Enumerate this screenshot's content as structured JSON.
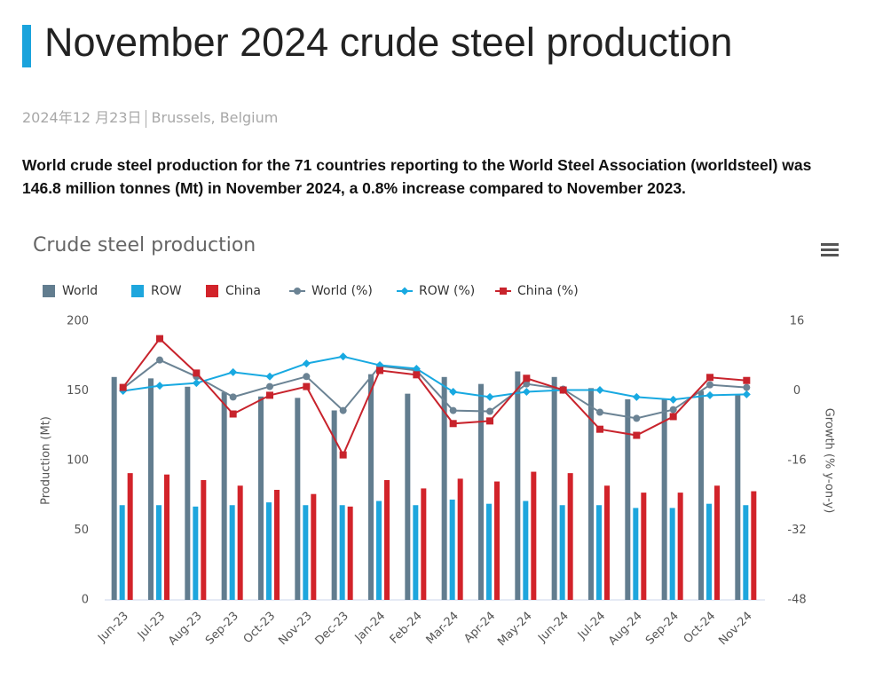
{
  "header": {
    "title": "November 2024 crude steel production",
    "date": "2024年12 月23日",
    "location": "Brussels, Belgium"
  },
  "summary": {
    "lines": [
      "World crude steel production for the 71 countries reporting to the World Steel Association (worldsteel) was",
      "146.8 million tonnes (Mt) in November 2024, a 0.8% increase compared to November 2023."
    ]
  },
  "chart_data": {
    "type": "bar",
    "title": "Crude steel production",
    "y_label": "Production (Mt)",
    "y2_label": "Growth (% y-on-y)",
    "categories": [
      "Jun-23",
      "Jul-23",
      "Aug-23",
      "Sep-23",
      "Oct-23",
      "Nov-23",
      "Dec-23",
      "Jan-24",
      "Feb-24",
      "Mar-24",
      "Apr-24",
      "May-24",
      "Jun-24",
      "Jul-24",
      "Aug-24",
      "Sep-24",
      "Oct-24",
      "Nov-24"
    ],
    "ylim": [
      0,
      200
    ],
    "yticks": [
      0,
      50,
      100,
      150,
      200
    ],
    "y2lim": [
      -48,
      16
    ],
    "y2ticks": [
      -48,
      -32,
      -16,
      0,
      16
    ],
    "series": [
      {
        "name": "World",
        "type": "bar",
        "color": "#627d8f",
        "values": [
          160,
          159,
          153,
          149,
          146,
          145,
          136,
          162,
          148,
          160,
          155,
          164,
          160,
          152,
          144,
          144,
          150,
          147
        ]
      },
      {
        "name": "ROW",
        "type": "bar",
        "color": "#1ea6dd",
        "values": [
          68,
          68,
          67,
          68,
          70,
          68,
          68,
          71,
          68,
          72,
          69,
          71,
          68,
          68,
          66,
          66,
          69,
          68
        ]
      },
      {
        "name": "China",
        "type": "bar",
        "color": "#d2232a",
        "values": [
          91,
          90,
          86,
          82,
          79,
          76,
          67,
          86,
          80,
          87,
          85,
          92,
          91,
          82,
          77,
          77,
          82,
          78
        ]
      },
      {
        "name": "World (%)",
        "type": "line",
        "axis": "y2",
        "marker": "circle",
        "color": "#6b8394",
        "values": [
          0.6,
          7.1,
          3.3,
          -1.4,
          1.0,
          3.3,
          -4.5,
          5.7,
          4.7,
          -4.5,
          -4.7,
          1.6,
          0.4,
          -4.9,
          -6.3,
          -4.3,
          1.4,
          0.8
        ]
      },
      {
        "name": "ROW (%)",
        "type": "line",
        "axis": "y2",
        "marker": "diamond",
        "color": "#18a9e1",
        "values": [
          0,
          1.2,
          1.8,
          4.3,
          3.3,
          6.3,
          7.9,
          5.9,
          5.1,
          -0.2,
          -1.4,
          -0.2,
          0.2,
          0.2,
          -1.4,
          -2.0,
          -1.0,
          -0.8
        ]
      },
      {
        "name": "China (%)",
        "type": "line",
        "axis": "y2",
        "marker": "square",
        "color": "#c8232c",
        "values": [
          0.8,
          12.0,
          4.1,
          -5.3,
          -1.0,
          1.0,
          -14.7,
          4.7,
          3.7,
          -7.5,
          -6.9,
          2.9,
          0.2,
          -8.8,
          -10.2,
          -5.9,
          3.1,
          2.4
        ]
      }
    ]
  }
}
